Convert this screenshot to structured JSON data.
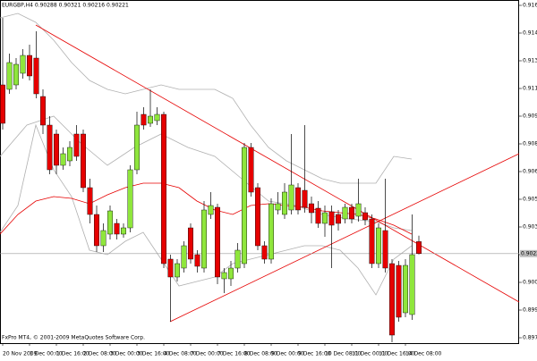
{
  "chart_data": {
    "type": "candlestick",
    "title": "EURGBP,H4  0.90288 0.90321 0.90216 0.90221",
    "footer": "FxPro MT4, © 2001-2009 MetaQuotes Software Corp.",
    "categories": [
      "20 Nov 2009",
      null,
      null,
      null,
      "1 Dec 00:00",
      null,
      null,
      null,
      "1 Dec 16:00",
      null,
      null,
      null,
      "2 Dec 08:00",
      null,
      null,
      null,
      "3 Dec 00:00",
      null,
      null,
      null,
      "3 Dec 16:00",
      null,
      null,
      null,
      "4 Dec 08:00",
      null,
      null,
      null,
      "7 Dec 00:00",
      null,
      null,
      null,
      "7 Dec 16:00",
      null,
      null,
      null,
      "8 Dec 08:00",
      null,
      null,
      null,
      "9 Dec 00:00",
      null,
      null,
      null,
      "9 Dec 16:00",
      null,
      null,
      null,
      "10 Dec 08:00",
      null,
      null,
      null,
      "11 Dec 00:00",
      null,
      null,
      null,
      "11 Dec 16:00",
      null,
      null,
      null,
      "14 Dec 08:00",
      null,
      null
    ],
    "open": [
      0.91165,
      0.9114,
      0.91165,
      0.9123,
      0.9133,
      0.91315,
      0.911,
      0.9094,
      0.9089,
      0.90715,
      0.9074,
      0.9089,
      0.9089,
      0.9059,
      0.9044,
      0.90265,
      0.9033,
      0.9039,
      0.9033,
      0.90365,
      0.9069,
      0.91,
      0.9095,
      0.90965,
      0.91,
      0.9019,
      0.9009,
      0.9014,
      0.90365,
      0.90215,
      0.9014,
      0.9044,
      0.9048,
      0.9008,
      0.9008,
      0.9014,
      0.90165,
      0.90815,
      0.9059,
      0.90265,
      0.9019,
      0.90465,
      0.9044,
      0.90465,
      0.9059,
      0.90575,
      0.905,
      0.90475,
      0.9039,
      0.90455,
      0.9044,
      0.90415,
      0.9048,
      0.9043,
      0.9045,
      0.90415,
      0.90165,
      0.9035,
      0.90165,
      0.90155,
      0.8989,
      0.8988,
      0.90288
    ],
    "high": [
      0.9154,
      0.9134,
      0.91315,
      0.91365,
      0.9139,
      0.91465,
      0.9114,
      0.9099,
      0.90915,
      0.90815,
      0.9085,
      0.9094,
      0.90915,
      0.9064,
      0.9049,
      0.9039,
      0.9049,
      0.90415,
      0.9039,
      0.90715,
      0.91015,
      0.9104,
      0.9114,
      0.9104,
      0.91015,
      0.90215,
      0.9019,
      0.9029,
      0.9039,
      0.9024,
      0.90515,
      0.90565,
      0.905,
      0.9014,
      0.9018,
      0.9028,
      0.9084,
      0.9084,
      0.90615,
      0.9029,
      0.9053,
      0.90565,
      0.90615,
      0.9089,
      0.90615,
      0.9094,
      0.9054,
      0.90515,
      0.9049,
      0.9049,
      0.90465,
      0.905,
      0.905,
      0.9064,
      0.9048,
      0.9044,
      0.9039,
      0.9064,
      0.9019,
      0.9018,
      0.9019,
      0.9044,
      0.90321
    ],
    "low": [
      0.90915,
      0.91115,
      0.9114,
      0.912,
      0.9119,
      0.9109,
      0.9089,
      0.90665,
      0.90665,
      0.9069,
      0.9071,
      0.9074,
      0.90565,
      0.9039,
      0.9023,
      0.9023,
      0.903,
      0.903,
      0.9031,
      0.9034,
      0.90665,
      0.90915,
      0.9093,
      0.9094,
      0.9014,
      0.8984,
      0.90065,
      0.90115,
      0.90165,
      0.90115,
      0.90115,
      0.90415,
      0.9005,
      0.9,
      0.9004,
      0.90115,
      0.9014,
      0.9054,
      0.9024,
      0.90165,
      0.90165,
      0.9044,
      0.90415,
      0.9044,
      0.9044,
      0.9045,
      0.9039,
      0.90365,
      0.90315,
      0.9014,
      0.9035,
      0.9039,
      0.9039,
      0.904,
      0.9038,
      0.9014,
      0.9014,
      0.90115,
      0.89725,
      0.8984,
      0.89865,
      0.8985,
      0.90216
    ],
    "close": [
      0.9095,
      0.9129,
      0.9128,
      0.9133,
      0.91215,
      0.91115,
      0.9094,
      0.9069,
      0.90715,
      0.9078,
      0.90815,
      0.90765,
      0.9059,
      0.9044,
      0.90265,
      0.9035,
      0.9046,
      0.9033,
      0.90365,
      0.9069,
      0.9094,
      0.9094,
      0.9099,
      0.91,
      0.90165,
      0.9009,
      0.90165,
      0.90265,
      0.9019,
      0.9015,
      0.90465,
      0.9049,
      0.9009,
      0.90115,
      0.9014,
      0.9024,
      0.90815,
      0.90565,
      0.90265,
      0.9019,
      0.905,
      0.905,
      0.90565,
      0.90605,
      0.90465,
      0.9048,
      0.9045,
      0.9039,
      0.9045,
      0.9038,
      0.9039,
      0.9048,
      0.90415,
      0.905,
      0.9041,
      0.90165,
      0.90365,
      0.9014,
      0.89765,
      0.89865,
      0.90155,
      0.90215,
      0.90221
    ],
    "up_color": "#8fe63c",
    "down_color": "#e60000",
    "ylim": [
      0.8972,
      0.9164
    ],
    "yticks": [
      {
        "value": 0.9161,
        "label": "0.91610"
      },
      {
        "value": 0.91455,
        "label": "0.91455"
      },
      {
        "value": 0.913,
        "label": "0.91300"
      },
      {
        "value": 0.91145,
        "label": "0.91145"
      },
      {
        "value": 0.9099,
        "label": "0.90990"
      },
      {
        "value": 0.90835,
        "label": "0.90835"
      },
      {
        "value": 0.9068,
        "label": "0.90680"
      },
      {
        "value": 0.90525,
        "label": "0.90525"
      },
      {
        "value": 0.9037,
        "label": "0.90370"
      },
      {
        "value": 0.90215,
        "label": "0.90215"
      },
      {
        "value": 0.9006,
        "label": "0.90060"
      },
      {
        "value": 0.89905,
        "label": "0.89905"
      },
      {
        "value": 0.8975,
        "label": "0.89750"
      }
    ],
    "current_price": {
      "value": 0.90221,
      "label": "0.90221"
    },
    "grid": false
  }
}
